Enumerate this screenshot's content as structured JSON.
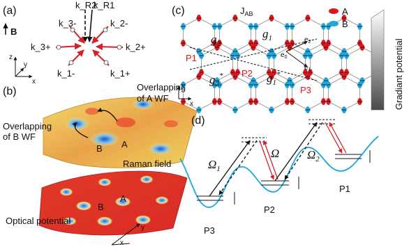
{
  "panels": {
    "a": {
      "label": "(a)",
      "b_field": "B",
      "axes": {
        "z": "z",
        "y": "y",
        "x": "x"
      },
      "wavevectors": [
        "k_R2",
        "k_R1",
        "k_3-",
        "k_2-",
        "k_3+",
        "k_2+",
        "k_1-",
        "k_1+"
      ]
    },
    "b": {
      "label": "(b)",
      "overlap_a": "Overlapping of A WF",
      "overlap_b": "Overlapping of B WF",
      "raman_field": "Raman field",
      "optical_potential": "Optical potential",
      "site_a": "A",
      "site_b": "B",
      "axes": {
        "x": "x",
        "y": "y"
      }
    },
    "c": {
      "label": "(c)",
      "hopping": "J_AB",
      "legend": [
        {
          "name": "A",
          "color": "#e0151b"
        },
        {
          "name": "B",
          "color": "#1aa7df"
        }
      ],
      "gradient": "Gradiant potential",
      "couplings": [
        "g2",
        "g1",
        "g2*",
        "g1*"
      ],
      "vectors": [
        "e2",
        "e0",
        "e1"
      ],
      "sites": [
        "P1",
        "P2",
        "P3"
      ],
      "axes": {
        "y": "y",
        "x": "x"
      }
    },
    "d": {
      "label": "(d)",
      "rabi": [
        "Ω1",
        "Ω",
        "Ω2"
      ],
      "wells": [
        "P3",
        "P2",
        "P1"
      ]
    }
  },
  "colors": {
    "site_a": "#e0151b",
    "site_b": "#1aa7df",
    "potential": "#1aa7df",
    "arrow_red": "#e0151b"
  }
}
